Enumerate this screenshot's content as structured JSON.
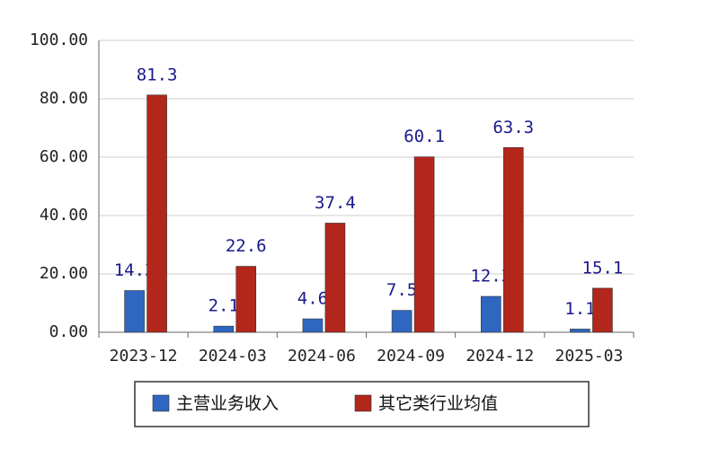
{
  "chart_data": {
    "type": "bar",
    "categories": [
      "2023-12",
      "2024-03",
      "2024-06",
      "2024-09",
      "2024-12",
      "2025-03"
    ],
    "series": [
      {
        "name": "主营业务收入",
        "color": "#2e66c0",
        "values": [
          14.3,
          2.1,
          4.6,
          7.5,
          12.3,
          1.1
        ]
      },
      {
        "name": "其它类行业均值",
        "color": "#b3261c",
        "values": [
          81.3,
          22.6,
          37.4,
          60.1,
          63.3,
          15.1
        ]
      }
    ],
    "ylim": [
      0,
      100
    ],
    "yticks": [
      {
        "value": 0,
        "label": "0.00"
      },
      {
        "value": 20,
        "label": "20.00"
      },
      {
        "value": 40,
        "label": "40.00"
      },
      {
        "value": 60,
        "label": "60.00"
      },
      {
        "value": 80,
        "label": "80.00"
      },
      {
        "value": 100,
        "label": "100.00"
      }
    ],
    "grid": true
  }
}
